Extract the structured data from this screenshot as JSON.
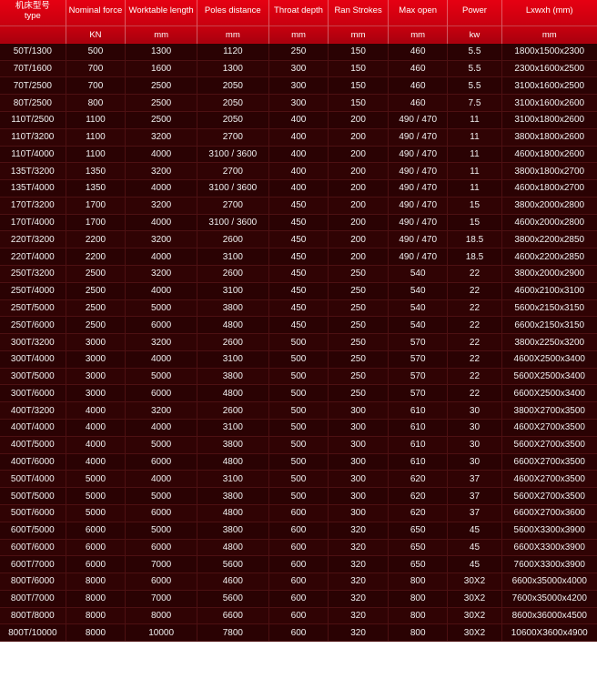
{
  "table": {
    "type": "table",
    "header_bg_top": "#e60012",
    "header_bg_bottom": "#a8000d",
    "body_bg": "#2a0203",
    "body_bg_alt": "#300304",
    "grid_color": "#4d1012",
    "text_color": "#f0f0f0",
    "header_text_color": "#ffffff",
    "font_size_body": 10,
    "font_size_header": 9.5,
    "columns": [
      {
        "label_cn": "机床型号",
        "label_en": "type",
        "unit": "",
        "width": "11%"
      },
      {
        "label_cn": "",
        "label_en": "Nominal force",
        "unit": "KN",
        "width": "10%"
      },
      {
        "label_cn": "",
        "label_en": "Worktable length",
        "unit": "mm",
        "width": "12%"
      },
      {
        "label_cn": "",
        "label_en": "Poles distance",
        "unit": "mm",
        "width": "12%"
      },
      {
        "label_cn": "",
        "label_en": "Throat depth",
        "unit": "mm",
        "width": "10%"
      },
      {
        "label_cn": "",
        "label_en": "Ran Strokes",
        "unit": "mm",
        "width": "10%"
      },
      {
        "label_cn": "",
        "label_en": "Max open",
        "unit": "mm",
        "width": "10%"
      },
      {
        "label_cn": "",
        "label_en": "Power",
        "unit": "kw",
        "width": "9%"
      },
      {
        "label_cn": "",
        "label_en": "Lxwxh (mm)",
        "unit": "mm",
        "width": "16%"
      }
    ],
    "rows": [
      [
        "50T/1300",
        "500",
        "1300",
        "1120",
        "250",
        "150",
        "460",
        "5.5",
        "1800x1500x2300"
      ],
      [
        "70T/1600",
        "700",
        "1600",
        "1300",
        "300",
        "150",
        "460",
        "5.5",
        "2300x1600x2500"
      ],
      [
        "70T/2500",
        "700",
        "2500",
        "2050",
        "300",
        "150",
        "460",
        "5.5",
        "3100x1600x2500"
      ],
      [
        "80T/2500",
        "800",
        "2500",
        "2050",
        "300",
        "150",
        "460",
        "7.5",
        "3100x1600x2600"
      ],
      [
        "110T/2500",
        "1100",
        "2500",
        "2050",
        "400",
        "200",
        "490 / 470",
        "11",
        "3100x1800x2600"
      ],
      [
        "110T/3200",
        "1100",
        "3200",
        "2700",
        "400",
        "200",
        "490 / 470",
        "11",
        "3800x1800x2600"
      ],
      [
        "110T/4000",
        "1100",
        "4000",
        "3100 / 3600",
        "400",
        "200",
        "490 / 470",
        "11",
        "4600x1800x2600"
      ],
      [
        "135T/3200",
        "1350",
        "3200",
        "2700",
        "400",
        "200",
        "490 / 470",
        "11",
        "3800x1800x2700"
      ],
      [
        "135T/4000",
        "1350",
        "4000",
        "3100 / 3600",
        "400",
        "200",
        "490 / 470",
        "11",
        "4600x1800x2700"
      ],
      [
        "170T/3200",
        "1700",
        "3200",
        "2700",
        "450",
        "200",
        "490 / 470",
        "15",
        "3800x2000x2800"
      ],
      [
        "170T/4000",
        "1700",
        "4000",
        "3100 / 3600",
        "450",
        "200",
        "490 / 470",
        "15",
        "4600x2000x2800"
      ],
      [
        "220T/3200",
        "2200",
        "3200",
        "2600",
        "450",
        "200",
        "490 / 470",
        "18.5",
        "3800x2200x2850"
      ],
      [
        "220T/4000",
        "2200",
        "4000",
        "3100",
        "450",
        "200",
        "490 / 470",
        "18.5",
        "4600x2200x2850"
      ],
      [
        "250T/3200",
        "2500",
        "3200",
        "2600",
        "450",
        "250",
        "540",
        "22",
        "3800x2000x2900"
      ],
      [
        "250T/4000",
        "2500",
        "4000",
        "3100",
        "450",
        "250",
        "540",
        "22",
        "4600x2100x3100"
      ],
      [
        "250T/5000",
        "2500",
        "5000",
        "3800",
        "450",
        "250",
        "540",
        "22",
        "5600x2150x3150"
      ],
      [
        "250T/6000",
        "2500",
        "6000",
        "4800",
        "450",
        "250",
        "540",
        "22",
        "6600x2150x3150"
      ],
      [
        "300T/3200",
        "3000",
        "3200",
        "2600",
        "500",
        "250",
        "570",
        "22",
        "3800x2250x3200"
      ],
      [
        "300T/4000",
        "3000",
        "4000",
        "3100",
        "500",
        "250",
        "570",
        "22",
        "4600X2500x3400"
      ],
      [
        "300T/5000",
        "3000",
        "5000",
        "3800",
        "500",
        "250",
        "570",
        "22",
        "5600X2500x3400"
      ],
      [
        "300T/6000",
        "3000",
        "6000",
        "4800",
        "500",
        "250",
        "570",
        "22",
        "6600X2500x3400"
      ],
      [
        "400T/3200",
        "4000",
        "3200",
        "2600",
        "500",
        "300",
        "610",
        "30",
        "3800X2700x3500"
      ],
      [
        "400T/4000",
        "4000",
        "4000",
        "3100",
        "500",
        "300",
        "610",
        "30",
        "4600X2700x3500"
      ],
      [
        "400T/5000",
        "4000",
        "5000",
        "3800",
        "500",
        "300",
        "610",
        "30",
        "5600X2700x3500"
      ],
      [
        "400T/6000",
        "4000",
        "6000",
        "4800",
        "500",
        "300",
        "610",
        "30",
        "6600X2700x3500"
      ],
      [
        "500T/4000",
        "5000",
        "4000",
        "3100",
        "500",
        "300",
        "620",
        "37",
        "4600X2700x3500"
      ],
      [
        "500T/5000",
        "5000",
        "5000",
        "3800",
        "500",
        "300",
        "620",
        "37",
        "5600X2700x3500"
      ],
      [
        "500T/6000",
        "5000",
        "6000",
        "4800",
        "600",
        "300",
        "620",
        "37",
        "6600X2700x3600"
      ],
      [
        "600T/5000",
        "6000",
        "5000",
        "3800",
        "600",
        "320",
        "650",
        "45",
        "5600X3300x3900"
      ],
      [
        "600T/6000",
        "6000",
        "6000",
        "4800",
        "600",
        "320",
        "650",
        "45",
        "6600X3300x3900"
      ],
      [
        "600T/7000",
        "6000",
        "7000",
        "5600",
        "600",
        "320",
        "650",
        "45",
        "7600X3300x3900"
      ],
      [
        "800T/6000",
        "8000",
        "6000",
        "4600",
        "600",
        "320",
        "800",
        "30X2",
        "6600x35000x4000"
      ],
      [
        "800T/7000",
        "8000",
        "7000",
        "5600",
        "600",
        "320",
        "800",
        "30X2",
        "7600x35000x4200"
      ],
      [
        "800T/8000",
        "8000",
        "8000",
        "6600",
        "600",
        "320",
        "800",
        "30X2",
        "8600x36000x4500"
      ],
      [
        "800T/10000",
        "8000",
        "10000",
        "7800",
        "600",
        "320",
        "800",
        "30X2",
        "10600X3600x4900"
      ]
    ]
  }
}
